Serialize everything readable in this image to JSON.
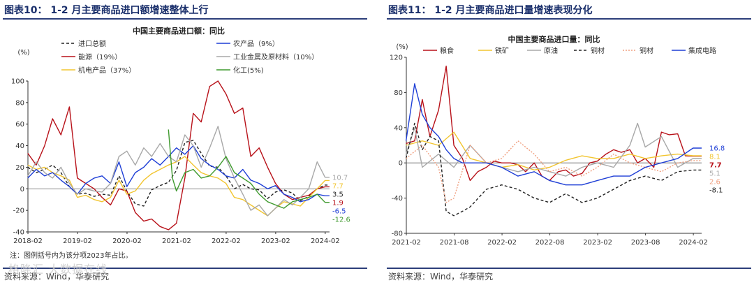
{
  "left": {
    "figure_title": "图表10： 1-2 月主要商品进口额增速整体上行",
    "note": "注：图例括号内为该分项2023年占比。",
    "source": "资料来源：Wind，华泰研究"
  },
  "right": {
    "figure_title": "图表11： 1-2 月主要商品进口量增速表现分化",
    "source": "资料来源：Wind，华泰研究"
  },
  "watermark": "格隆汇 大数据在线",
  "chart_data": [
    {
      "type": "line",
      "title": "中国主要商品进口额：同比",
      "ylabel": "(%)",
      "ylim": [
        -40,
        100
      ],
      "yticks": [
        -40,
        -20,
        0,
        20,
        40,
        60,
        80,
        100
      ],
      "xticks": [
        "2018-02",
        "2019-02",
        "2020-02",
        "2021-02",
        "2022-02",
        "2023-02",
        "2024-02"
      ],
      "x_range": [
        2018.083,
        2024.17
      ],
      "series": [
        {
          "name": "进口总额",
          "color": "#222222",
          "dash": "4,3",
          "end_label": "3.5",
          "x": [
            2018.08,
            2018.25,
            2018.42,
            2018.58,
            2018.75,
            2018.92,
            2019.08,
            2019.25,
            2019.42,
            2019.58,
            2019.75,
            2019.92,
            2020.08,
            2020.25,
            2020.42,
            2020.58,
            2020.75,
            2020.92,
            2021.08,
            2021.25,
            2021.42,
            2021.58,
            2021.75,
            2021.92,
            2022.08,
            2022.25,
            2022.42,
            2022.58,
            2022.75,
            2022.92,
            2023.08,
            2023.25,
            2023.42,
            2023.58,
            2023.75,
            2023.92,
            2024.08,
            2024.17
          ],
          "values": [
            20,
            15,
            18,
            22,
            15,
            2,
            -5,
            -4,
            -7,
            -5,
            -6,
            12,
            -2,
            -14,
            -16,
            -1,
            3,
            6,
            17,
            43,
            45,
            33,
            21,
            20,
            12,
            0,
            4,
            0,
            -1,
            -9,
            -3,
            -1,
            -4,
            -11,
            -7,
            0,
            3.5,
            3.5
          ]
        },
        {
          "name": "能源（19%）",
          "color": "#b8121a",
          "end_label": "1.9",
          "x": [
            2018.08,
            2018.25,
            2018.42,
            2018.58,
            2018.75,
            2018.92,
            2019.08,
            2019.25,
            2019.42,
            2019.58,
            2019.75,
            2019.92,
            2020.08,
            2020.25,
            2020.42,
            2020.58,
            2020.75,
            2020.92,
            2021.08,
            2021.25,
            2021.42,
            2021.58,
            2021.75,
            2021.92,
            2022.08,
            2022.25,
            2022.42,
            2022.58,
            2022.75,
            2022.92,
            2023.08,
            2023.25,
            2023.42,
            2023.58,
            2023.75,
            2023.92,
            2024.08,
            2024.17
          ],
          "values": [
            33,
            22,
            40,
            65,
            50,
            76,
            10,
            5,
            0,
            -8,
            -15,
            0,
            -2,
            -22,
            -30,
            -28,
            -35,
            -38,
            -32,
            10,
            70,
            62,
            95,
            100,
            88,
            70,
            75,
            30,
            38,
            20,
            5,
            -5,
            -10,
            -8,
            -6,
            0,
            1.9,
            1.9
          ]
        },
        {
          "name": "机电产品（37%）",
          "color": "#f2c530",
          "end_label": "7.7",
          "x": [
            2018.08,
            2018.25,
            2018.42,
            2018.58,
            2018.75,
            2018.92,
            2019.08,
            2019.25,
            2019.42,
            2019.58,
            2019.75,
            2019.92,
            2020.08,
            2020.25,
            2020.42,
            2020.58,
            2020.75,
            2020.92,
            2021.08,
            2021.25,
            2021.42,
            2021.58,
            2021.75,
            2021.92,
            2022.08,
            2022.25,
            2022.42,
            2022.58,
            2022.75,
            2022.92,
            2023.08,
            2023.25,
            2023.42,
            2023.58,
            2023.75,
            2023.92,
            2024.08,
            2024.17
          ],
          "values": [
            22,
            18,
            20,
            15,
            12,
            8,
            -8,
            -6,
            -10,
            -12,
            -8,
            8,
            -5,
            -2,
            8,
            14,
            18,
            22,
            25,
            30,
            22,
            15,
            12,
            10,
            5,
            -8,
            -10,
            -15,
            -20,
            -25,
            -18,
            -12,
            -14,
            -16,
            -8,
            0,
            7.7,
            7.7
          ]
        },
        {
          "name": "农产品（9%）",
          "color": "#1f3fd6",
          "end_label": "-6.5",
          "x": [
            2018.08,
            2018.25,
            2018.42,
            2018.58,
            2018.75,
            2018.92,
            2019.08,
            2019.25,
            2019.42,
            2019.58,
            2019.75,
            2019.92,
            2020.08,
            2020.25,
            2020.42,
            2020.58,
            2020.75,
            2020.92,
            2021.08,
            2021.25,
            2021.42,
            2021.58,
            2021.75,
            2021.92,
            2022.08,
            2022.25,
            2022.42,
            2022.58,
            2022.75,
            2022.92,
            2023.08,
            2023.25,
            2023.42,
            2023.58,
            2023.75,
            2023.92,
            2024.08,
            2024.17
          ],
          "values": [
            10,
            18,
            12,
            15,
            8,
            2,
            -5,
            5,
            10,
            12,
            5,
            25,
            2,
            15,
            20,
            28,
            22,
            30,
            38,
            32,
            40,
            28,
            22,
            18,
            12,
            10,
            18,
            8,
            5,
            0,
            3,
            -5,
            -8,
            -12,
            -10,
            -5,
            -6.5,
            -6.5
          ]
        },
        {
          "name": "工业金属及原材料（10%）",
          "color": "#a8a8a8",
          "end_label": "10.7",
          "x": [
            2018.08,
            2018.25,
            2018.42,
            2018.58,
            2018.75,
            2018.92,
            2019.08,
            2019.25,
            2019.42,
            2019.58,
            2019.75,
            2019.92,
            2020.08,
            2020.25,
            2020.42,
            2020.58,
            2020.75,
            2020.92,
            2021.08,
            2021.25,
            2021.42,
            2021.58,
            2021.75,
            2021.92,
            2022.08,
            2022.25,
            2022.42,
            2022.58,
            2022.75,
            2022.92,
            2023.08,
            2023.25,
            2023.42,
            2023.58,
            2023.75,
            2023.92,
            2024.08,
            2024.17
          ],
          "values": [
            12,
            25,
            15,
            10,
            20,
            5,
            -5,
            0,
            -2,
            -3,
            5,
            30,
            35,
            22,
            38,
            30,
            42,
            30,
            25,
            50,
            40,
            20,
            38,
            58,
            28,
            10,
            -5,
            -20,
            -15,
            -25,
            -18,
            -10,
            -15,
            -8,
            0,
            25,
            10.7,
            10.7
          ]
        },
        {
          "name": "化工(5%)",
          "color": "#3f9a2e",
          "end_label": "-12.6",
          "x": [
            2020.92,
            2021.0,
            2021.08,
            2021.25,
            2021.42,
            2021.58,
            2021.75,
            2021.92,
            2022.08,
            2022.25,
            2022.42,
            2022.58,
            2022.75,
            2022.92,
            2023.08,
            2023.25,
            2023.42,
            2023.58,
            2023.75,
            2023.92,
            2024.08,
            2024.17
          ],
          "values": [
            55,
            10,
            -2,
            15,
            18,
            10,
            12,
            20,
            30,
            15,
            10,
            5,
            -5,
            -12,
            -15,
            -18,
            -12,
            -10,
            -8,
            -5,
            -12.6,
            -12.6
          ]
        }
      ]
    },
    {
      "type": "line",
      "title": "中国主要商品进口量：同比",
      "ylabel": "(%)",
      "ylim": [
        -80,
        120
      ],
      "yticks": [
        -80,
        -40,
        0,
        40,
        80,
        120
      ],
      "xticks": [
        "2021-02",
        "2021-08",
        "2022-02",
        "2022-08",
        "2023-02",
        "2023-08",
        "2024-02"
      ],
      "x_range": [
        2021.083,
        2024.17
      ],
      "series": [
        {
          "name": "粮食",
          "color": "#b8121a",
          "end_label": "7.7",
          "x": [
            2021.08,
            2021.17,
            2021.25,
            2021.33,
            2021.42,
            2021.5,
            2021.58,
            2021.67,
            2021.75,
            2021.83,
            2021.92,
            2022.0,
            2022.08,
            2022.17,
            2022.25,
            2022.33,
            2022.42,
            2022.5,
            2022.58,
            2022.67,
            2022.75,
            2022.83,
            2022.92,
            2023.0,
            2023.08,
            2023.17,
            2023.25,
            2023.33,
            2023.42,
            2023.5,
            2023.58,
            2023.67,
            2023.75,
            2023.83,
            2023.92,
            2024.0,
            2024.08,
            2024.17
          ],
          "values": [
            22,
            25,
            72,
            30,
            60,
            110,
            20,
            5,
            -20,
            -10,
            -5,
            2,
            0,
            0,
            -2,
            -10,
            0,
            -15,
            -20,
            -10,
            -8,
            -15,
            -12,
            0,
            2,
            10,
            15,
            12,
            15,
            0,
            5,
            -5,
            35,
            32,
            33,
            8,
            7.7,
            7.7
          ]
        },
        {
          "name": "铁矿",
          "color": "#f2c530",
          "end_label": "8.1",
          "x": [
            2021.08,
            2021.25,
            2021.42,
            2021.58,
            2021.75,
            2021.92,
            2022.08,
            2022.25,
            2022.42,
            2022.58,
            2022.75,
            2022.92,
            2023.08,
            2023.25,
            2023.42,
            2023.58,
            2023.75,
            2023.92,
            2024.08,
            2024.17
          ],
          "values": [
            20,
            25,
            20,
            35,
            5,
            0,
            -5,
            -2,
            -8,
            -5,
            3,
            8,
            5,
            5,
            10,
            5,
            8,
            10,
            8.1,
            8.1
          ]
        },
        {
          "name": "原油",
          "color": "#a8a8a8",
          "end_label": "5.1",
          "x": [
            2021.08,
            2021.17,
            2021.25,
            2021.42,
            2021.58,
            2021.75,
            2021.92,
            2022.08,
            2022.25,
            2022.42,
            2022.58,
            2022.75,
            2022.92,
            2023.08,
            2023.25,
            2023.42,
            2023.5,
            2023.58,
            2023.75,
            2023.92,
            2024.08,
            2024.17
          ],
          "values": [
            10,
            40,
            -5,
            10,
            -5,
            20,
            0,
            -5,
            -10,
            -5,
            -10,
            -15,
            -5,
            0,
            -5,
            20,
            45,
            18,
            30,
            -5,
            5.1,
            5.1
          ]
        },
        {
          "name": "铜材",
          "color": "#222222",
          "dash": "4,3",
          "end_label": "-8.1",
          "x": [
            2021.08,
            2021.17,
            2021.25,
            2021.33,
            2021.42,
            2021.5,
            2021.58,
            2021.67,
            2021.75,
            2021.92,
            2022.08,
            2022.25,
            2022.42,
            2022.58,
            2022.75,
            2022.92,
            2023.08,
            2023.25,
            2023.42,
            2023.58,
            2023.75,
            2023.92,
            2024.08,
            2024.17
          ],
          "values": [
            5,
            45,
            15,
            30,
            25,
            -55,
            -60,
            -55,
            -50,
            -30,
            -25,
            -30,
            -40,
            -45,
            -35,
            -45,
            -40,
            -30,
            -20,
            -15,
            -20,
            -10,
            -8.1,
            -8.1
          ]
        },
        {
          "name": "铜材",
          "color": "#f0a080",
          "dash": "2,2",
          "end_label": "2.6",
          "x": [
            2021.08,
            2021.25,
            2021.42,
            2021.5,
            2021.58,
            2021.75,
            2021.92,
            2022.08,
            2022.25,
            2022.42,
            2022.58,
            2022.75,
            2022.92,
            2023.08,
            2023.25,
            2023.42,
            2023.58,
            2023.75,
            2023.92,
            2024.08,
            2024.17
          ],
          "values": [
            5,
            20,
            -5,
            -45,
            -40,
            20,
            0,
            5,
            25,
            10,
            -10,
            -5,
            -15,
            -5,
            10,
            0,
            -5,
            -10,
            0,
            2.6,
            2.6
          ]
        },
        {
          "name": "集成电路",
          "color": "#1f3fd6",
          "end_label": "16.8",
          "x": [
            2021.08,
            2021.17,
            2021.25,
            2021.33,
            2021.42,
            2021.5,
            2021.58,
            2021.67,
            2021.75,
            2021.92,
            2022.08,
            2022.25,
            2022.42,
            2022.58,
            2022.75,
            2022.92,
            2023.08,
            2023.25,
            2023.42,
            2023.58,
            2023.75,
            2023.92,
            2024.08,
            2024.17
          ],
          "values": [
            25,
            90,
            55,
            40,
            30,
            15,
            5,
            0,
            0,
            0,
            -5,
            -15,
            -10,
            -20,
            -25,
            -25,
            -20,
            -15,
            -15,
            -5,
            0,
            5,
            16.8,
            16.8
          ]
        }
      ]
    }
  ]
}
